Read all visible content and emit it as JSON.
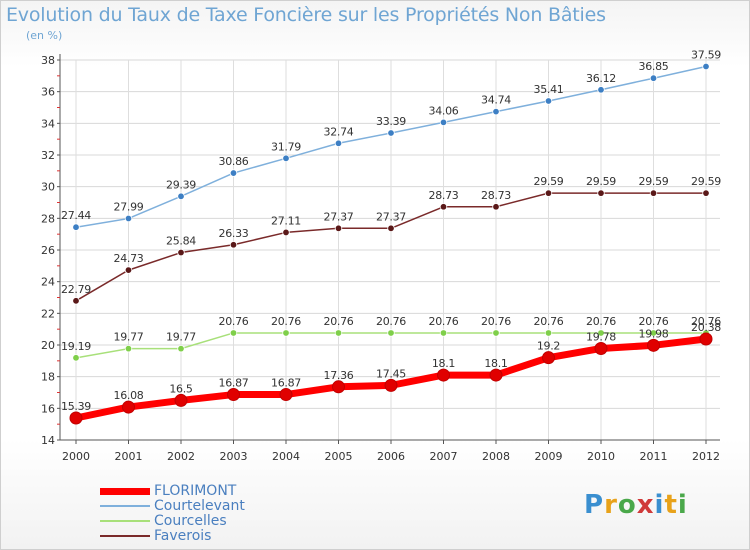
{
  "title": "Evolution du Taux de Taxe Foncière sur les Propriétés Non Bâties",
  "subtitle": "(en %)",
  "logo_text": "Proxiti",
  "logo_colors": [
    "#3a8fd0",
    "#e8a21a",
    "#4aa84a",
    "#d03a3a",
    "#3a8fd0",
    "#e8a21a",
    "#4aa84a"
  ],
  "chart_data": {
    "type": "line",
    "x": [
      "2000",
      "2001",
      "2002",
      "2003",
      "2004",
      "2005",
      "2006",
      "2007",
      "2008",
      "2009",
      "2010",
      "2011",
      "2012"
    ],
    "ylim": [
      14,
      38
    ],
    "yticks": [
      14,
      16,
      18,
      20,
      22,
      24,
      26,
      28,
      30,
      32,
      34,
      36,
      38
    ],
    "grid": true,
    "legend_position": "bottom-left",
    "series": [
      {
        "name": "FLORIMONT",
        "color": "#ff0000",
        "marker": "#e00000",
        "emphasis": true,
        "values": [
          15.39,
          16.08,
          16.5,
          16.87,
          16.87,
          17.36,
          17.45,
          18.1,
          18.1,
          19.2,
          19.78,
          19.98,
          20.38
        ],
        "labels": [
          "15.39",
          "16.08",
          "16.5",
          "16.87",
          "16.87",
          "17.36",
          "17.45",
          "18.1",
          "18.1",
          "19.2",
          "19.78",
          "19.98",
          "20.38"
        ]
      },
      {
        "name": "Courtelevant",
        "color": "#7fb0dc",
        "marker": "#3d7fc4",
        "emphasis": false,
        "values": [
          27.44,
          27.99,
          29.39,
          30.86,
          31.79,
          32.74,
          33.39,
          34.06,
          34.74,
          35.41,
          36.12,
          36.85,
          37.59
        ],
        "labels": [
          "27.44",
          "27.99",
          "29.39",
          "30.86",
          "31.79",
          "32.74",
          "33.39",
          "34.06",
          "34.74",
          "35.41",
          "36.12",
          "36.85",
          "37.59"
        ]
      },
      {
        "name": "Courcelles",
        "color": "#a8e07a",
        "marker": "#7fcf4a",
        "emphasis": false,
        "values": [
          19.19,
          19.77,
          19.77,
          20.76,
          20.76,
          20.76,
          20.76,
          20.76,
          20.76,
          20.76,
          20.76,
          20.76,
          20.76
        ],
        "labels": [
          "19.19",
          "19.77",
          "19.77",
          "20.76",
          "20.76",
          "20.76",
          "20.76",
          "20.76",
          "20.76",
          "20.76",
          "20.76",
          "20.76",
          "20.76"
        ]
      },
      {
        "name": "Faverois",
        "color": "#7a2a2a",
        "marker": "#5a1818",
        "emphasis": false,
        "values": [
          22.79,
          24.73,
          25.84,
          26.33,
          27.11,
          27.37,
          27.37,
          28.73,
          28.73,
          29.59,
          29.59,
          29.59,
          29.59
        ],
        "labels": [
          "22.79",
          "24.73",
          "25.84",
          "26.33",
          "27.11",
          "27.37",
          "27.37",
          "28.73",
          "28.73",
          "29.59",
          "29.59",
          "29.59",
          "29.59"
        ]
      }
    ]
  }
}
